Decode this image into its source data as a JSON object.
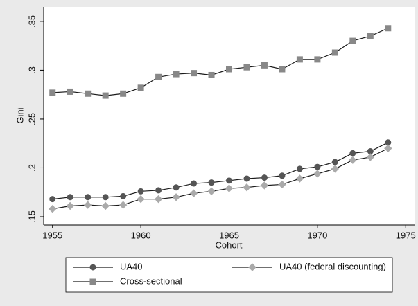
{
  "chart_data": {
    "type": "line",
    "xlabel": "Cohort",
    "ylabel": "Gini",
    "x": [
      1955,
      1956,
      1957,
      1958,
      1959,
      1960,
      1961,
      1962,
      1963,
      1964,
      1965,
      1966,
      1967,
      1968,
      1969,
      1970,
      1971,
      1972,
      1973,
      1974
    ],
    "series": [
      {
        "name": "UA40",
        "color": "#555555",
        "marker": "circle",
        "values": [
          0.168,
          0.17,
          0.17,
          0.17,
          0.171,
          0.176,
          0.177,
          0.18,
          0.184,
          0.185,
          0.187,
          0.189,
          0.19,
          0.192,
          0.199,
          0.201,
          0.206,
          0.215,
          0.217,
          0.226
        ]
      },
      {
        "name": "UA40 (federal discounting)",
        "color": "#aaaaaa",
        "marker": "diamond",
        "values": [
          0.158,
          0.161,
          0.162,
          0.161,
          0.162,
          0.168,
          0.168,
          0.17,
          0.174,
          0.176,
          0.179,
          0.18,
          0.182,
          0.183,
          0.189,
          0.194,
          0.199,
          0.208,
          0.211,
          0.22
        ]
      },
      {
        "name": "Cross-sectional",
        "color": "#888888",
        "marker": "square",
        "values": [
          0.277,
          0.278,
          0.276,
          0.274,
          0.276,
          0.282,
          0.293,
          0.296,
          0.297,
          0.295,
          0.301,
          0.303,
          0.305,
          0.301,
          0.311,
          0.311,
          0.318,
          0.33,
          0.335,
          0.343
        ]
      }
    ],
    "line_color": "#1a1a1a",
    "xlim": [
      1954.5,
      1975.5
    ],
    "xticks": [
      1955,
      1960,
      1965,
      1970,
      1975
    ],
    "ylim": [
      0.1415,
      0.3648
    ],
    "yticks": [
      {
        "value": 0.15,
        "label": ".15"
      },
      {
        "value": 0.2,
        "label": ".2"
      },
      {
        "value": 0.25,
        "label": ".25"
      },
      {
        "value": 0.3,
        "label": ".3"
      },
      {
        "value": 0.35,
        "label": ".35"
      }
    ],
    "grid": false
  }
}
